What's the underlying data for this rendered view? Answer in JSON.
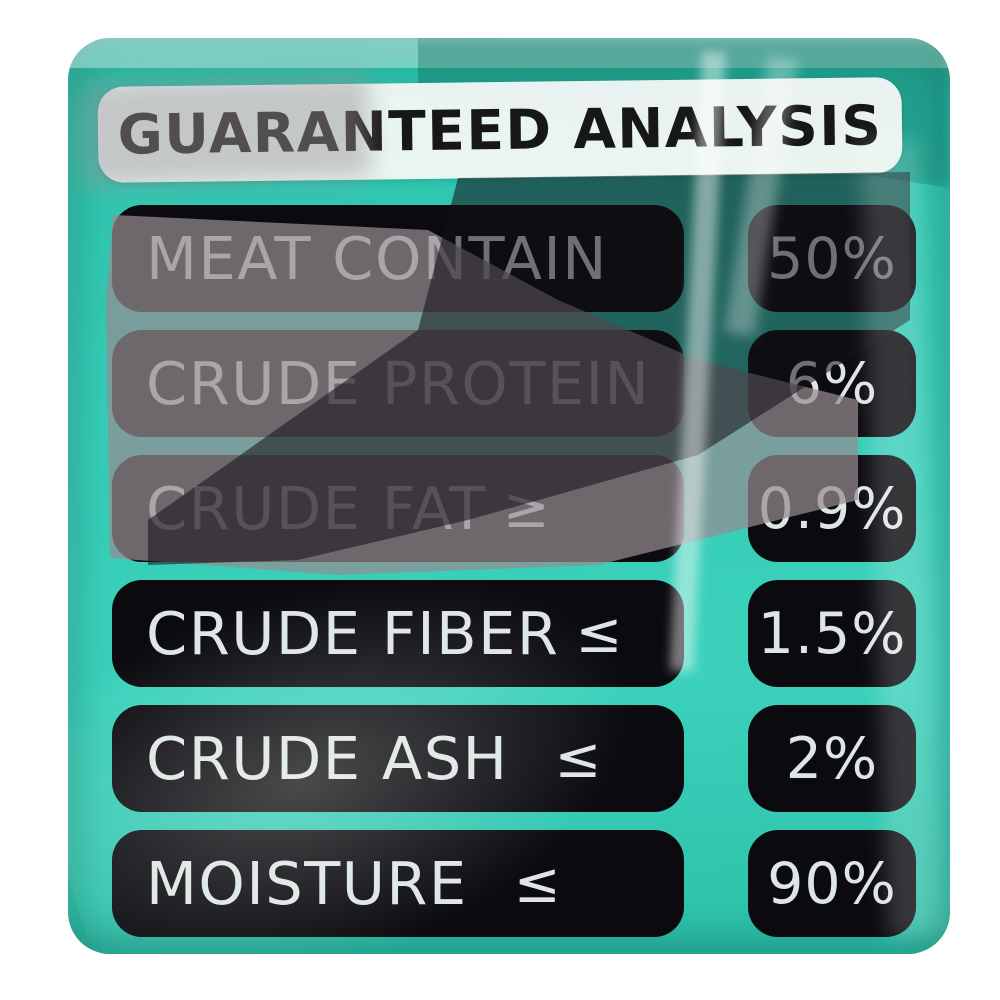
{
  "header": {
    "title": "GUARANTEED ANALYSIS"
  },
  "analysis": {
    "rows": [
      {
        "label": "MEAT CONTAIN",
        "symbol": "",
        "value": "50%"
      },
      {
        "label": "CRUDE PROTEIN",
        "symbol": "",
        "value": "6%"
      },
      {
        "label": "CRUDE FAT",
        "symbol": "≥",
        "value": "0.9%"
      },
      {
        "label": "CRUDE FIBER",
        "symbol": "≤",
        "value": "1.5%"
      },
      {
        "label": "CRUDE ASH",
        "symbol": "≤",
        "value": "2%"
      },
      {
        "label": "MOISTURE",
        "symbol": "≤",
        "value": "90%"
      }
    ]
  },
  "colors": {
    "panel_teal": "#33C9B3",
    "panel_teal_dark": "#1FA892",
    "pill_black": "#0B0A0E",
    "pill_text": "#DDE6E5",
    "header_band": "#F5F8F7",
    "header_text": "#171717",
    "page_background": "#FFFFFF"
  }
}
